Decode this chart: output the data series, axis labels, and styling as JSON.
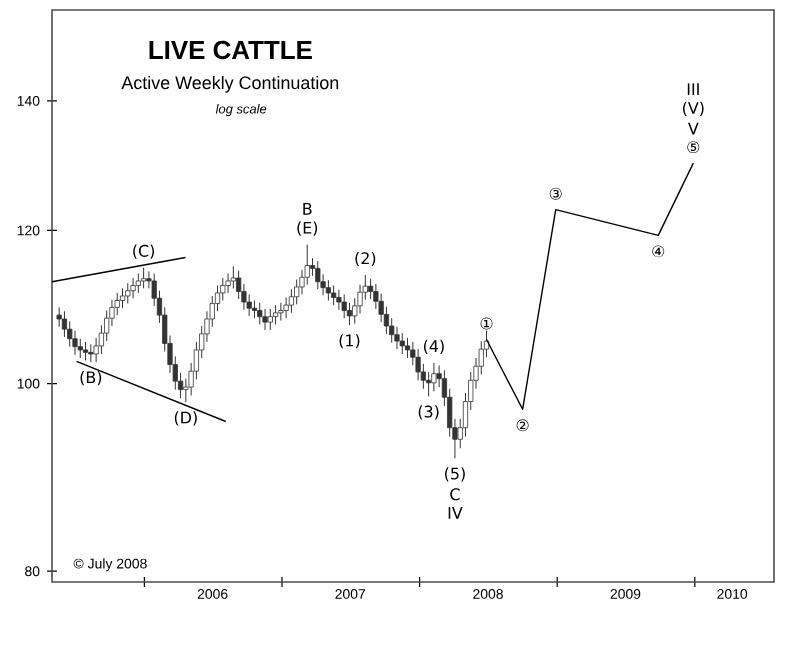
{
  "chart_data": {
    "type": "candlestick",
    "title": "LIVE CATTLE",
    "subtitle": "Active Weekly Continuation",
    "log": "y",
    "grid": false,
    "color": "#333333",
    "xlim": [
      "2005-05-01",
      "2010-07-30"
    ],
    "xticks": [
      {
        "value": "2006-01-01",
        "label": null
      },
      {
        "value": "2007-01-01",
        "label": null
      },
      {
        "value": "2008-01-01",
        "label": null
      },
      {
        "value": "2009-01-01",
        "label": null
      },
      {
        "value": "2010-01-01",
        "label": null
      },
      {
        "value": "2006-07-01",
        "label": "2006"
      },
      {
        "value": "2007-07-01",
        "label": "2007"
      },
      {
        "value": "2008-07-01",
        "label": "2008"
      },
      {
        "value": "2009-07-01",
        "label": "2009"
      },
      {
        "value": "2010-04-10",
        "label": "2010"
      }
    ],
    "ylim": [
      79,
      156
    ],
    "yticks": [
      80,
      100,
      120,
      140
    ],
    "x": [
      "2005-05-20",
      "2005-06-03",
      "2005-06-17",
      "2005-07-01",
      "2005-07-15",
      "2005-07-29",
      "2005-08-12",
      "2005-08-26",
      "2005-09-09",
      "2005-09-23",
      "2005-10-07",
      "2005-10-21",
      "2005-11-04",
      "2005-11-18",
      "2005-12-02",
      "2005-12-16",
      "2005-12-30",
      "2006-01-13",
      "2006-01-27",
      "2006-02-10",
      "2006-02-24",
      "2006-03-10",
      "2006-03-24",
      "2006-04-07",
      "2006-04-21",
      "2006-05-05",
      "2006-05-19",
      "2006-06-02",
      "2006-06-16",
      "2006-06-30",
      "2006-07-14",
      "2006-07-28",
      "2006-08-11",
      "2006-08-25",
      "2006-09-08",
      "2006-09-22",
      "2006-10-06",
      "2006-10-20",
      "2006-11-03",
      "2006-11-17",
      "2006-12-01",
      "2006-12-15",
      "2006-12-29",
      "2007-01-12",
      "2007-01-26",
      "2007-02-09",
      "2007-02-23",
      "2007-03-09",
      "2007-03-23",
      "2007-04-06",
      "2007-04-20",
      "2007-05-04",
      "2007-05-18",
      "2007-06-01",
      "2007-06-15",
      "2007-06-29",
      "2007-07-13",
      "2007-07-27",
      "2007-08-10",
      "2007-08-24",
      "2007-09-07",
      "2007-09-21",
      "2007-10-05",
      "2007-10-19",
      "2007-11-02",
      "2007-11-16",
      "2007-11-30",
      "2007-12-14",
      "2007-12-28",
      "2008-01-11",
      "2008-01-25",
      "2008-02-08",
      "2008-02-22",
      "2008-03-07",
      "2008-03-21",
      "2008-04-04",
      "2008-04-18",
      "2008-05-02",
      "2008-05-16",
      "2008-05-30",
      "2008-06-13",
      "2008-06-27"
    ],
    "ohlc": [
      [
        108.5,
        109.5,
        107,
        108
      ],
      [
        108,
        109,
        105.7,
        106.7
      ],
      [
        106.7,
        107.7,
        104.5,
        105.5
      ],
      [
        105.5,
        106.5,
        103.5,
        104.5
      ],
      [
        104.5,
        105.5,
        103.1,
        104.1
      ],
      [
        104.1,
        105.1,
        102.8,
        103.8
      ],
      [
        103.8,
        104.8,
        102.6,
        103.6
      ],
      [
        103.6,
        105.6,
        102.6,
        104.6
      ],
      [
        104.6,
        107.2,
        103.6,
        106.2
      ],
      [
        106.2,
        109.1,
        105.2,
        108.1
      ],
      [
        108.1,
        110.5,
        107.1,
        109.5
      ],
      [
        109.5,
        111.4,
        108.5,
        110.4
      ],
      [
        110.4,
        112,
        109.4,
        111
      ],
      [
        111,
        112.7,
        110,
        111.7
      ],
      [
        111.7,
        113.4,
        110.7,
        112.4
      ],
      [
        112.4,
        114,
        111.4,
        113
      ],
      [
        113,
        114.8,
        112,
        113.3
      ],
      [
        113.3,
        114.3,
        112,
        113
      ],
      [
        113,
        114,
        109.7,
        110.7
      ],
      [
        110.7,
        111.7,
        107.5,
        108.5
      ],
      [
        108.5,
        109.5,
        103.9,
        104.9
      ],
      [
        104.9,
        105.9,
        101.3,
        102.3
      ],
      [
        102.3,
        103.3,
        99.3,
        100.3
      ],
      [
        100.3,
        101.3,
        98.3,
        99.3
      ],
      [
        99.3,
        100.6,
        97.8,
        99.6
      ],
      [
        99.6,
        102.5,
        98.6,
        101.5
      ],
      [
        101.5,
        105.1,
        100.5,
        104.1
      ],
      [
        104.1,
        107.1,
        103.1,
        106.1
      ],
      [
        106.1,
        109,
        105.1,
        108
      ],
      [
        108,
        111,
        107,
        110
      ],
      [
        110,
        112.4,
        109,
        111.4
      ],
      [
        111.4,
        113.4,
        110.4,
        112.4
      ],
      [
        112.4,
        114,
        111.4,
        113
      ],
      [
        113,
        115,
        112,
        113.4
      ],
      [
        113.4,
        114.4,
        110.6,
        111.6
      ],
      [
        111.6,
        112.6,
        109.2,
        110.2
      ],
      [
        110.2,
        111.2,
        108.4,
        109.4
      ],
      [
        109.4,
        110.4,
        108.1,
        109.1
      ],
      [
        109.1,
        110.1,
        107.3,
        108.3
      ],
      [
        108.3,
        109.3,
        106.6,
        107.6
      ],
      [
        107.6,
        109.3,
        106.6,
        108.3
      ],
      [
        108.3,
        109.8,
        107.3,
        108.8
      ],
      [
        108.8,
        110.1,
        107.8,
        109.1
      ],
      [
        109.1,
        110.8,
        108.1,
        109.8
      ],
      [
        109.8,
        111.9,
        108.8,
        110.9
      ],
      [
        110.9,
        113.2,
        109.9,
        112.2
      ],
      [
        112.2,
        114.5,
        111.2,
        113.5
      ],
      [
        113.5,
        118,
        112.5,
        115.1
      ],
      [
        115.1,
        116.1,
        113.7,
        114.7
      ],
      [
        114.7,
        115.7,
        111.9,
        112.9
      ],
      [
        112.9,
        113.9,
        111.1,
        112.1
      ],
      [
        112.1,
        113.1,
        110.4,
        111.4
      ],
      [
        111.4,
        112.4,
        109.8,
        110.8
      ],
      [
        110.8,
        111.8,
        109.2,
        110.2
      ],
      [
        110.2,
        111.2,
        108.1,
        109.1
      ],
      [
        109.1,
        110.1,
        107.2,
        108.4
      ],
      [
        108.4,
        110.7,
        107.4,
        109.7
      ],
      [
        109.7,
        112.5,
        108.7,
        111.5
      ],
      [
        111.5,
        113.8,
        110.5,
        112.3
      ],
      [
        112.3,
        113.3,
        110.6,
        111.6
      ],
      [
        111.6,
        112.6,
        109.3,
        110.3
      ],
      [
        110.3,
        111.3,
        107.6,
        108.6
      ],
      [
        108.6,
        109.6,
        106.1,
        107.1
      ],
      [
        107.1,
        108.1,
        105,
        106
      ],
      [
        106,
        107,
        104.2,
        105.2
      ],
      [
        105.2,
        106.2,
        103.6,
        104.6
      ],
      [
        104.6,
        105.6,
        103.1,
        104.1
      ],
      [
        104.1,
        105.1,
        102.2,
        103.2
      ],
      [
        103.2,
        104.2,
        100.4,
        101.4
      ],
      [
        101.4,
        102.4,
        99.4,
        100.4
      ],
      [
        100.4,
        101.4,
        98.5,
        100.1
      ],
      [
        100.1,
        102.5,
        99.1,
        101.2
      ],
      [
        101.2,
        102.2,
        99.6,
        100.6
      ],
      [
        100.6,
        101.6,
        97.4,
        98.4
      ],
      [
        98.4,
        99.4,
        93.9,
        94.9
      ],
      [
        94.9,
        95.9,
        91.5,
        93.6
      ],
      [
        93.6,
        95.9,
        92.6,
        94.9
      ],
      [
        94.9,
        98.9,
        93.9,
        97.9
      ],
      [
        97.9,
        101.4,
        96.9,
        100.4
      ],
      [
        100.4,
        103.1,
        99.4,
        102.1
      ],
      [
        102.1,
        105.2,
        101.1,
        104.2
      ],
      [
        104.2,
        106.5,
        103.2,
        105.2
      ]
    ],
    "series": [
      {
        "type": "line",
        "color": "#000000",
        "x": [
          "2005-05-01",
          "2006-04-20"
        ],
        "values": [
          112.9,
          116.2
        ]
      },
      {
        "type": "line",
        "color": "#000000",
        "x": [
          "2005-07-05",
          "2006-08-05"
        ],
        "values": [
          102.7,
          95.6
        ]
      },
      {
        "type": "line",
        "color": "#000000",
        "x": [
          "2008-06-27",
          "2008-10-01",
          "2008-12-28",
          "2009-09-26",
          "2009-12-28"
        ],
        "values": [
          105.4,
          97,
          123,
          119.3,
          130
        ]
      }
    ],
    "annotations": [
      "log scale",
      "© July 2008",
      {
        "text": "(C)",
        "x": "2005-12-30",
        "y": 114.8
      },
      {
        "text": "(B)",
        "x": "2005-08-12",
        "y": 102.6
      },
      {
        "text": "(D)",
        "x": "2006-04-21",
        "y": 97.8
      },
      {
        "text": "(E)",
        "x": "2007-03-09",
        "y": 118
      },
      "B",
      {
        "text": "(2)",
        "x": "2007-08-10",
        "y": 113.8
      },
      {
        "text": "(1)",
        "x": "2007-06-29",
        "y": 107.2
      },
      {
        "text": "(4)",
        "x": "2008-02-08",
        "y": 102.5
      },
      {
        "text": "(3)",
        "x": "2008-01-25",
        "y": 98.5
      },
      {
        "text": "(5)",
        "x": "2008-04-04",
        "y": 91.5
      },
      "C",
      "IV",
      {
        "text": "①",
        "x": "2008-06-27",
        "y": 105.4
      },
      {
        "text": "②",
        "x": "2008-10-01",
        "y": 97
      },
      {
        "text": "③",
        "x": "2008-12-28",
        "y": 123
      },
      {
        "text": "④",
        "x": "2009-09-26",
        "y": 119.3
      },
      {
        "text": "⑤",
        "x": "2009-12-28",
        "y": 130
      },
      "V",
      "(V)",
      "III"
    ]
  }
}
